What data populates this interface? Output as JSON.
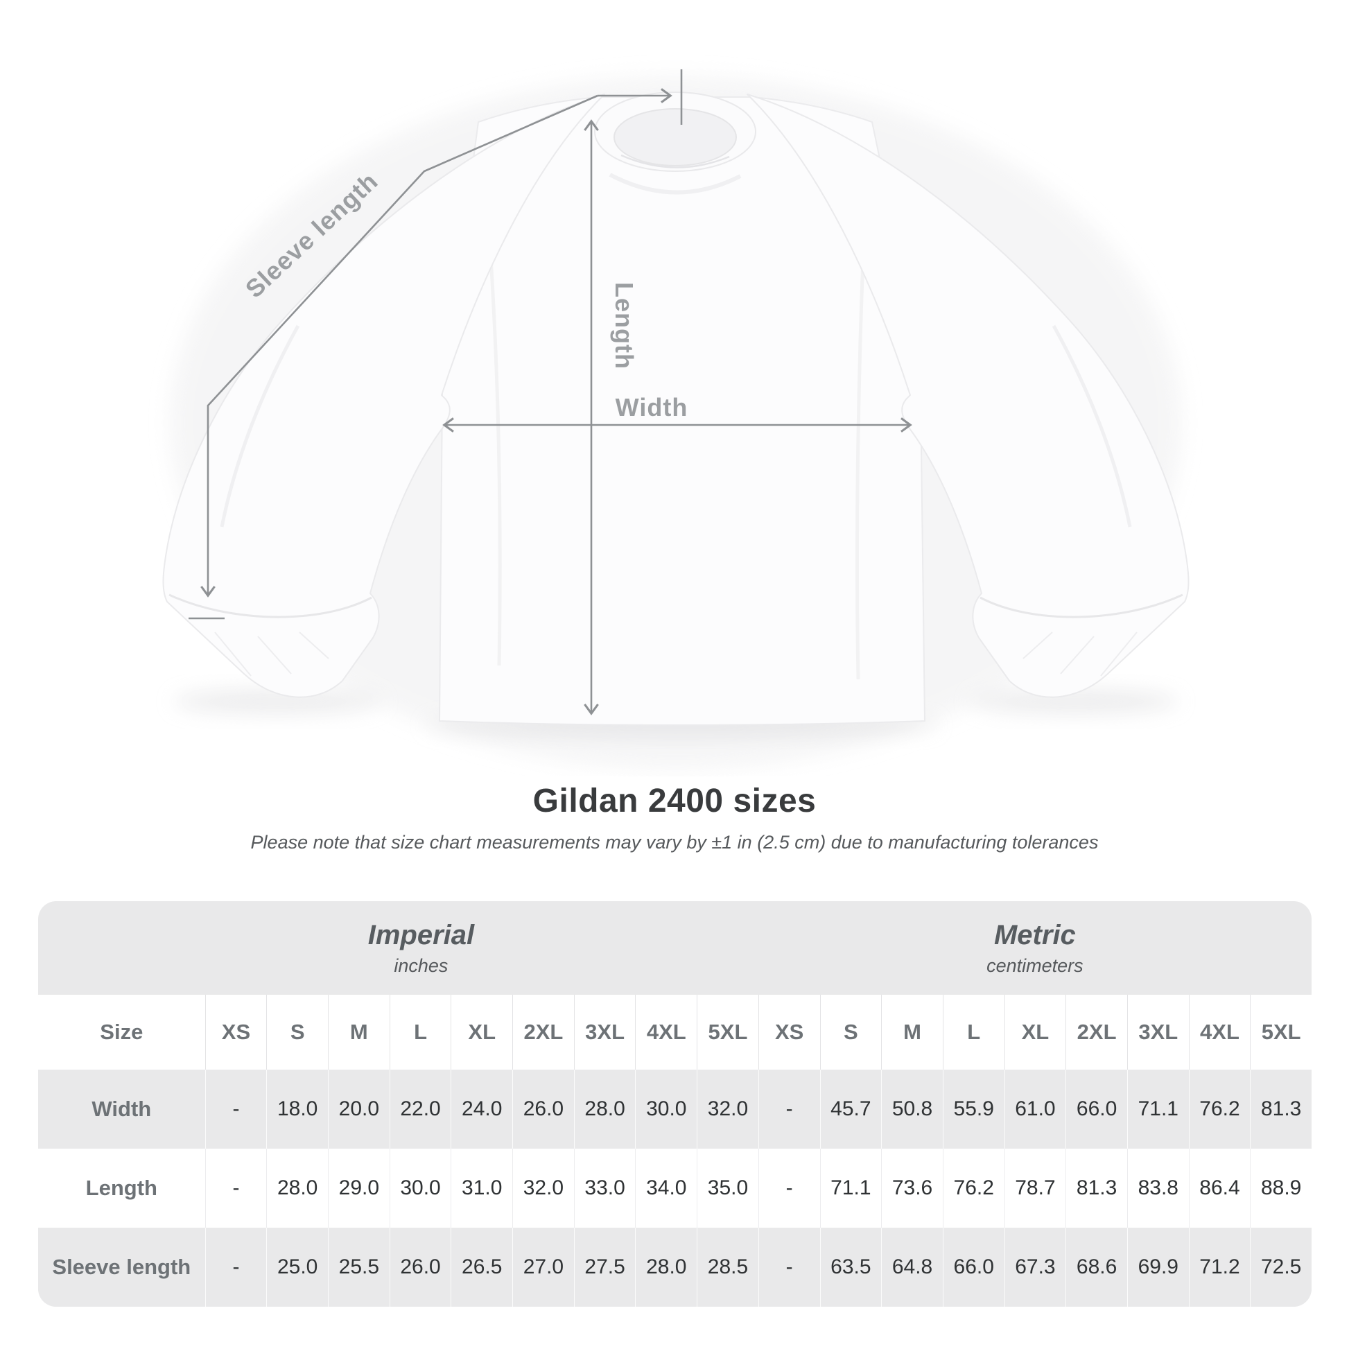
{
  "title": "Gildan 2400 sizes",
  "subtitle": "Please note that size chart measurements may vary by ±1 in (2.5 cm) due to manufacturing tolerances",
  "diagram": {
    "sleeve_length_label": "Sleeve length",
    "length_label": "Length",
    "width_label": "Width"
  },
  "table": {
    "unit_groups": [
      {
        "name": "Imperial",
        "unit": "inches"
      },
      {
        "name": "Metric",
        "unit": "centimeters"
      }
    ],
    "size_label": "Size",
    "sizes": [
      "XS",
      "S",
      "M",
      "L",
      "XL",
      "2XL",
      "3XL",
      "4XL",
      "5XL"
    ],
    "rows": [
      {
        "label": "Width",
        "imperial": [
          "-",
          "18.0",
          "20.0",
          "22.0",
          "24.0",
          "26.0",
          "28.0",
          "30.0",
          "32.0"
        ],
        "metric": [
          "-",
          "45.7",
          "50.8",
          "55.9",
          "61.0",
          "66.0",
          "71.1",
          "76.2",
          "81.3"
        ]
      },
      {
        "label": "Length",
        "imperial": [
          "-",
          "28.0",
          "29.0",
          "30.0",
          "31.0",
          "32.0",
          "33.0",
          "34.0",
          "35.0"
        ],
        "metric": [
          "-",
          "71.1",
          "73.6",
          "76.2",
          "78.7",
          "81.3",
          "83.8",
          "86.4",
          "88.9"
        ]
      },
      {
        "label": "Sleeve length",
        "imperial": [
          "-",
          "25.0",
          "25.5",
          "26.0",
          "26.5",
          "27.0",
          "27.5",
          "28.0",
          "28.5"
        ],
        "metric": [
          "-",
          "63.5",
          "64.8",
          "66.0",
          "67.3",
          "68.6",
          "69.9",
          "71.2",
          "72.5"
        ]
      }
    ]
  }
}
